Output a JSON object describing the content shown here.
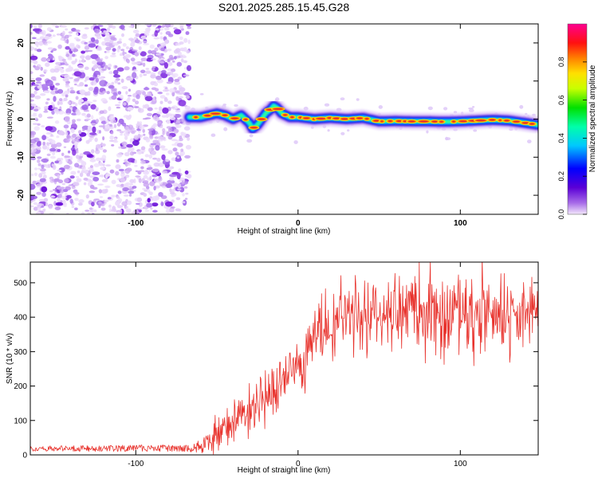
{
  "figure": {
    "title": "S201.2025.285.15.45.G28"
  },
  "colors": {
    "snr_line": "#e8322c",
    "axis": "#000000",
    "noise": "#8a2be2",
    "track_core": "#e8322c"
  },
  "chart_data": [
    {
      "type": "heatmap",
      "title": "S201.2025.285.15.45.G28",
      "xlabel": "Height of straight line (km)",
      "ylabel": "Frequency (Hz)",
      "xlim": [
        -165,
        148
      ],
      "ylim": [
        -25,
        25
      ],
      "xticks": [
        -100,
        0,
        100
      ],
      "yticks": [
        -20,
        -10,
        0,
        10,
        20
      ],
      "xtick_labels": [
        "-100",
        "0",
        "100"
      ],
      "ytick_labels": [
        "-20",
        "-10",
        "0",
        "10",
        "20"
      ],
      "colorbar": {
        "label": "Normalized spectral amplitude",
        "range": [
          0.0,
          1.0
        ],
        "ticks": [
          "0.0",
          "0.2",
          "0.4",
          "0.6",
          "0.8"
        ],
        "tick_values": [
          0.0,
          0.2,
          0.4,
          0.6,
          0.8
        ],
        "colormap": "rainbow: purple-blue-cyan-green-yellow-orange-red-magenta"
      },
      "noise_region_x": [
        -165,
        -67
      ],
      "track_frequency": {
        "x": [
          -67,
          -60,
          -55,
          -50,
          -45,
          -40,
          -35,
          -30,
          -28,
          -25,
          -20,
          -17,
          -15,
          -13,
          -10,
          -5,
          0,
          10,
          20,
          30,
          40,
          50,
          60,
          70,
          80,
          90,
          100,
          110,
          120,
          130,
          140,
          148
        ],
        "f": [
          0.5,
          0.5,
          1.0,
          1.5,
          1.0,
          0.0,
          1.0,
          -1.0,
          -2.5,
          -1.5,
          1.5,
          2.5,
          3.5,
          3.0,
          1.5,
          0.5,
          0.5,
          0.0,
          0.3,
          0.0,
          0.3,
          -0.6,
          -0.5,
          -0.6,
          -0.6,
          -0.7,
          -0.6,
          -0.4,
          -0.2,
          -0.4,
          -1.0,
          -1.5
        ]
      }
    },
    {
      "type": "line",
      "xlabel": "Height of straight line (km)",
      "ylabel": "SNR (10 * v/v)",
      "xlim": [
        -165,
        148
      ],
      "ylim": [
        0,
        560
      ],
      "xticks": [
        -100,
        0,
        100
      ],
      "yticks": [
        0,
        100,
        200,
        300,
        400,
        500
      ],
      "xtick_labels": [
        "-100",
        "0",
        "100"
      ],
      "ytick_labels": [
        "0",
        "100",
        "200",
        "300",
        "400",
        "500"
      ],
      "series": [
        {
          "name": "SNR",
          "color": "#e8322c",
          "trend_x": [
            -165,
            -70,
            -58,
            -50,
            -40,
            -30,
            -20,
            -10,
            0,
            5,
            10,
            20,
            30,
            40,
            60,
            80,
            100,
            120,
            140,
            148
          ],
          "trend_y": [
            18,
            20,
            25,
            75,
            105,
            140,
            170,
            215,
            265,
            300,
            340,
            380,
            405,
            415,
            418,
            420,
            410,
            420,
            415,
            425
          ],
          "spread": [
            8,
            10,
            20,
            45,
            50,
            60,
            70,
            80,
            80,
            85,
            90,
            95,
            95,
            100,
            100,
            100,
            100,
            100,
            100,
            100
          ]
        }
      ]
    }
  ]
}
